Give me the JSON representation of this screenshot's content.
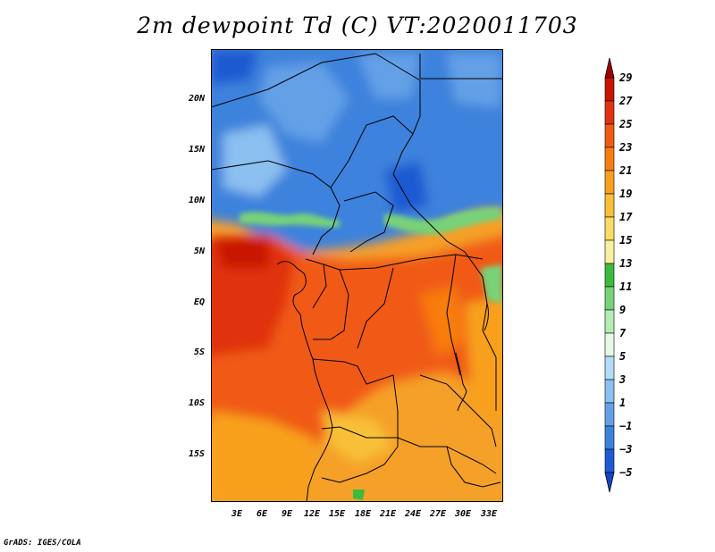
{
  "title": "2m dewpoint Td (C) VT:2020011703",
  "credit": "GrADS: IGES/COLA",
  "map": {
    "lat_labels": [
      "20N",
      "15N",
      "10N",
      "5N",
      "EQ",
      "5S",
      "10S",
      "15S"
    ],
    "lon_labels": [
      "3E",
      "6E",
      "9E",
      "12E",
      "15E",
      "18E",
      "21E",
      "24E",
      "27E",
      "30E",
      "33E"
    ]
  },
  "legend": {
    "labels": [
      "29",
      "27",
      "25",
      "23",
      "21",
      "19",
      "17",
      "15",
      "13",
      "11",
      "9",
      "7",
      "5",
      "3",
      "1",
      "−1",
      "−3",
      "−5"
    ],
    "colors": [
      "#a00000",
      "#c81400",
      "#e03210",
      "#f05a14",
      "#f87d10",
      "#f8a01c",
      "#f8c038",
      "#f8dc64",
      "#f8f0a0",
      "#3cbc3c",
      "#78d278",
      "#b4ecb4",
      "#e6f8e6",
      "#b4dcf8",
      "#8cc0f0",
      "#64a0e6",
      "#3c82dc",
      "#1e5ad2",
      "#1446c8"
    ]
  }
}
